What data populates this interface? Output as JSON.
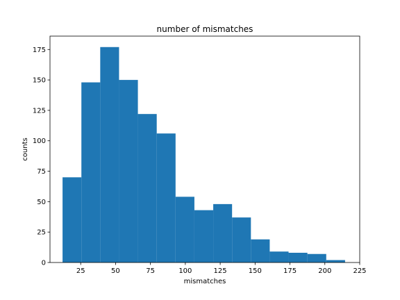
{
  "chart_data": {
    "type": "bar",
    "title": "number of mismatches",
    "xlabel": "mismatches",
    "ylabel": "counts",
    "bar_color": "#1f77b4",
    "xlim": [
      3,
      225
    ],
    "ylim": [
      0,
      186
    ],
    "xticks": [
      25,
      50,
      75,
      100,
      125,
      150,
      175,
      200,
      225
    ],
    "yticks": [
      0,
      25,
      50,
      75,
      100,
      125,
      150,
      175
    ],
    "grid": false,
    "bins": [
      {
        "x0": 12,
        "x1": 25.5,
        "value": 70
      },
      {
        "x0": 25.5,
        "x1": 39,
        "value": 148
      },
      {
        "x0": 39,
        "x1": 52.5,
        "value": 177
      },
      {
        "x0": 52.5,
        "x1": 66,
        "value": 150
      },
      {
        "x0": 66,
        "x1": 79.5,
        "value": 122
      },
      {
        "x0": 79.5,
        "x1": 93,
        "value": 106
      },
      {
        "x0": 93,
        "x1": 106.5,
        "value": 54
      },
      {
        "x0": 106.5,
        "x1": 120,
        "value": 43
      },
      {
        "x0": 120,
        "x1": 133.5,
        "value": 48
      },
      {
        "x0": 133.5,
        "x1": 147,
        "value": 37
      },
      {
        "x0": 147,
        "x1": 160.5,
        "value": 19
      },
      {
        "x0": 160.5,
        "x1": 174,
        "value": 9
      },
      {
        "x0": 174,
        "x1": 187.5,
        "value": 8
      },
      {
        "x0": 187.5,
        "x1": 201,
        "value": 7
      },
      {
        "x0": 201,
        "x1": 214.5,
        "value": 2
      }
    ]
  }
}
